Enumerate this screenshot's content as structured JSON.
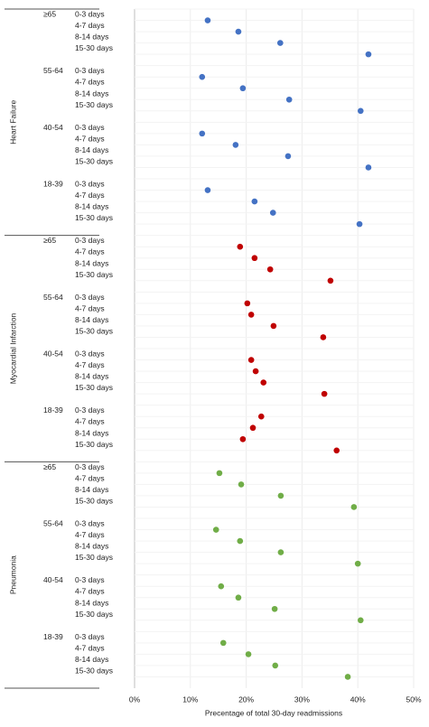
{
  "chart_data": {
    "type": "dot",
    "x_label": "Precentage of total 30-day readmissions",
    "xlim": [
      0,
      50
    ],
    "xticks": [
      {
        "value": 0,
        "label": "0%"
      },
      {
        "value": 10,
        "label": "10%"
      },
      {
        "value": 20,
        "label": "20%"
      },
      {
        "value": 30,
        "label": "30%"
      },
      {
        "value": 40,
        "label": "40%"
      },
      {
        "value": 50,
        "label": "50%"
      }
    ],
    "grid": true,
    "groups": [
      {
        "name": "Heart Failure",
        "color": "#4472c4",
        "subgroups": [
          {
            "name": "≥65",
            "categories": [
              "0-3 days",
              "4-7 days",
              "8-14 days",
              "15-30 days"
            ],
            "values": [
              13.1,
              18.6,
              26.1,
              41.9
            ]
          },
          {
            "name": "55-64",
            "categories": [
              "0-3 days",
              "4-7 days",
              "8-14 days",
              "15-30 days"
            ],
            "values": [
              12.1,
              19.4,
              27.7,
              40.5
            ]
          },
          {
            "name": "40-54",
            "categories": [
              "0-3 days",
              "4-7 days",
              "8-14 days",
              "15-30 days"
            ],
            "values": [
              12.1,
              18.1,
              27.5,
              41.9
            ]
          },
          {
            "name": "18-39",
            "categories": [
              "0-3 days",
              "4-7 days",
              "8-14 days",
              "15-30 days"
            ],
            "values": [
              13.1,
              21.5,
              24.8,
              40.3
            ]
          }
        ]
      },
      {
        "name": "Myocardial Infarction",
        "color": "#c00000",
        "subgroups": [
          {
            "name": "≥65",
            "categories": [
              "0-3 days",
              "4-7 days",
              "8-14 days",
              "15-30 days"
            ],
            "values": [
              18.9,
              21.5,
              24.3,
              35.1
            ]
          },
          {
            "name": "55-64",
            "categories": [
              "0-3 days",
              "4-7 days",
              "8-14 days",
              "15-30 days"
            ],
            "values": [
              20.2,
              20.9,
              24.9,
              33.8
            ]
          },
          {
            "name": "40-54",
            "categories": [
              "0-3 days",
              "4-7 days",
              "8-14 days",
              "15-30 days"
            ],
            "values": [
              20.9,
              21.7,
              23.1,
              34.0
            ]
          },
          {
            "name": "18-39",
            "categories": [
              "0-3 days",
              "4-7 days",
              "8-14 days",
              "15-30 days"
            ],
            "values": [
              22.7,
              21.2,
              19.4,
              36.2
            ]
          }
        ]
      },
      {
        "name": "Pneumonia",
        "color": "#70ad47",
        "subgroups": [
          {
            "name": "≥65",
            "categories": [
              "0-3 days",
              "4-7 days",
              "8-14 days",
              "15-30 days"
            ],
            "values": [
              15.2,
              19.1,
              26.2,
              39.3
            ]
          },
          {
            "name": "55-64",
            "categories": [
              "0-3 days",
              "4-7 days",
              "8-14 days",
              "15-30 days"
            ],
            "values": [
              14.6,
              18.9,
              26.2,
              40.0
            ]
          },
          {
            "name": "40-54",
            "categories": [
              "0-3 days",
              "4-7 days",
              "8-14 days",
              "15-30 days"
            ],
            "values": [
              15.5,
              18.6,
              25.1,
              40.5
            ]
          },
          {
            "name": "18-39",
            "categories": [
              "0-3 days",
              "4-7 days",
              "8-14 days",
              "15-30 days"
            ],
            "values": [
              15.9,
              20.4,
              25.2,
              38.2
            ]
          }
        ]
      }
    ]
  }
}
